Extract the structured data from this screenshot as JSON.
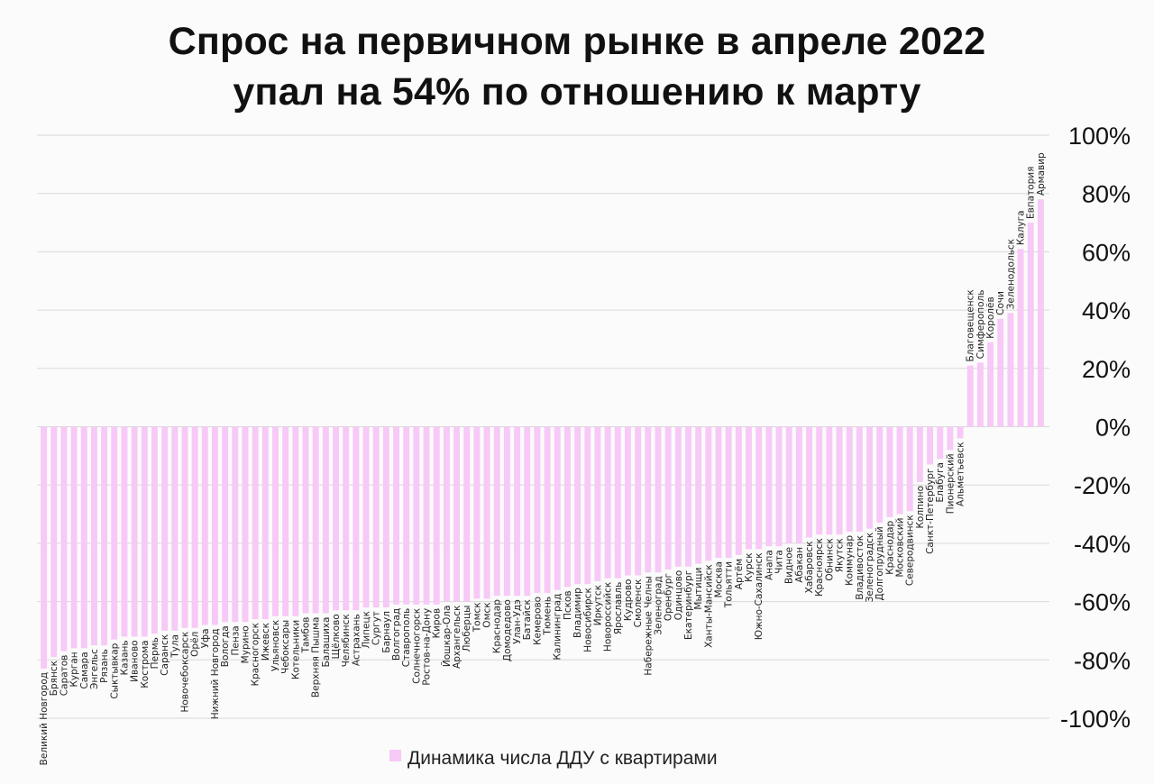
{
  "title_lines": [
    "Спрос на первичном рынке в апреле 2022",
    "упал на 54% по отношению к марту"
  ],
  "colors": {
    "bar": "#f7c9f7",
    "grid": "#d9d9d9",
    "text": "#111111",
    "label": "#222222"
  },
  "chart_data": {
    "type": "bar",
    "title": "Спрос на первичном рынке в апреле 2022 упал на 54% по отношению к марту",
    "ylim": [
      -100,
      100
    ],
    "yticks": [
      100,
      80,
      60,
      40,
      20,
      0,
      -20,
      -40,
      -60,
      -80,
      -100
    ],
    "ytick_labels": [
      "100%",
      "80%",
      "60%",
      "40%",
      "20%",
      "0%",
      "-20%",
      "-40%",
      "-60%",
      "-80%",
      "-100%"
    ],
    "grid": true,
    "legend": "bottom-center",
    "series": [
      {
        "name": "Динамика числа ДДУ с квартирами",
        "color": "#f7c9f7",
        "categories": [
          "Великий Новгород",
          "Брянск",
          "Саратов",
          "Курган",
          "Самара",
          "Энгельс",
          "Рязань",
          "Сыктывкар",
          "Казань",
          "Иваново",
          "Кострома",
          "Пермь",
          "Саранск",
          "Тула",
          "Новочебоксарск",
          "Орёл",
          "Уфа",
          "Нижний Новгород",
          "Вологда",
          "Пенза",
          "Мурино",
          "Красногорск",
          "Ижевск",
          "Ульяновск",
          "Чебоксары",
          "Котельники",
          "Тамбов",
          "Верхняя Пышма",
          "Балашиха",
          "Щёлково",
          "Челябинск",
          "Астрахань",
          "Липецк",
          "Сургут",
          "Барнаул",
          "Волгоград",
          "Ставрополь",
          "Солнечногорск",
          "Ростов-на-Дону",
          "Киров",
          "Йошкар-Ола",
          "Архангельск",
          "Люберцы",
          "Томск",
          "Омск",
          "Краснодар",
          "Домодедово",
          "Улан-Удэ",
          "Батайск",
          "Кемерово",
          "Тюмень",
          "Калининград",
          "Псков",
          "Владимир",
          "Новосибирск",
          "Иркутск",
          "Новороссийск",
          "Ярославль",
          "Кудрово",
          "Смоленск",
          "Набережные Челны",
          "Зеленоград",
          "Оренбург",
          "Одинцово",
          "Екатеринбург",
          "Мытищи",
          "Ханты-Мансийск",
          "Москва",
          "Тольятти",
          "Артём",
          "Курск",
          "Южно-Сахалинск",
          "Анапа",
          "Чита",
          "Видное",
          "Абакан",
          "Хабаровск",
          "Красноярск",
          "Обнинск",
          "Якутск",
          "Коммунар",
          "Владивосток",
          "Зеленоградск",
          "Долгопрудный",
          "Краснодар",
          "Московский",
          "Северодвинск",
          "Колпино",
          "Санкт-Петербург",
          "Елабуга",
          "Пионерский",
          "Альметьевск",
          "Благовещенск",
          "Симферополь",
          "Королёв",
          "Сочи",
          "Зеленодольск",
          "Калуга",
          "Евпатория",
          "Армавир"
        ],
        "values": [
          -83,
          -79,
          -77,
          -76,
          -76,
          -75,
          -75,
          -73,
          -72,
          -72,
          -72,
          -71,
          -70,
          -70,
          -69,
          -69,
          -68,
          -68,
          -67,
          -67,
          -67,
          -66,
          -66,
          -65,
          -65,
          -65,
          -64,
          -64,
          -64,
          -63,
          -63,
          -63,
          -62,
          -62,
          -62,
          -61,
          -61,
          -61,
          -61,
          -61,
          -60,
          -60,
          -60,
          -59,
          -59,
          -58,
          -58,
          -58,
          -58,
          -57,
          -57,
          -56,
          -55,
          -54,
          -54,
          -53,
          -52,
          -52,
          -51,
          -51,
          -50,
          -50,
          -49,
          -48,
          -48,
          -47,
          -46,
          -45,
          -45,
          -44,
          -42,
          -42,
          -41,
          -41,
          -40,
          -40,
          -38,
          -37,
          -37,
          -37,
          -36,
          -36,
          -35,
          -33,
          -31,
          -30,
          -29,
          -19,
          -13,
          -11,
          -8,
          -4,
          21,
          22,
          29,
          37,
          39,
          61,
          70,
          78
        ]
      }
    ]
  }
}
